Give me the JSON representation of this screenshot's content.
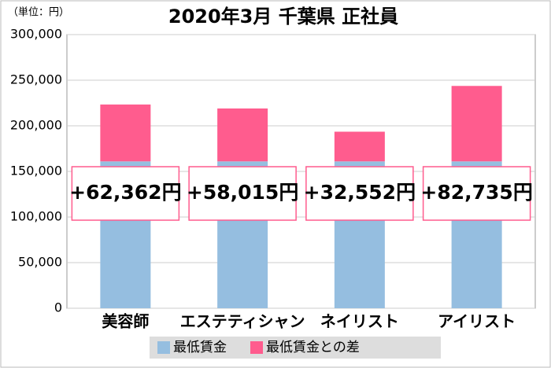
{
  "chart_data": {
    "type": "stacked-bar",
    "title": "2020年3月 千葉県 正社員",
    "unit_label": "（単位：円）",
    "categories": [
      "美容師",
      "エステティシャン",
      "ネイリスト",
      "アイリスト"
    ],
    "series": [
      {
        "name": "最低賃金",
        "color": "#95bee0",
        "values": [
          161000,
          161000,
          161000,
          161000
        ]
      },
      {
        "name": "最低賃金との差",
        "color": "#ff5c8e",
        "values": [
          62362,
          58015,
          32552,
          82735
        ],
        "value_labels": [
          "+62,362円",
          "+58,015円",
          "+32,552円",
          "+82,735円"
        ]
      }
    ],
    "ylim": [
      0,
      300000
    ],
    "yticks": [
      0,
      {
        "value": 50000,
        "label": "50,000"
      },
      {
        "value": 100000,
        "label": "100,000"
      },
      {
        "value": 150000,
        "label": "150,000"
      },
      {
        "value": 200000,
        "label": "200,000"
      },
      {
        "value": 250000,
        "label": "250,000"
      },
      {
        "value": 300000,
        "label": "300,000"
      }
    ],
    "grid": true,
    "legend": "bottom"
  }
}
